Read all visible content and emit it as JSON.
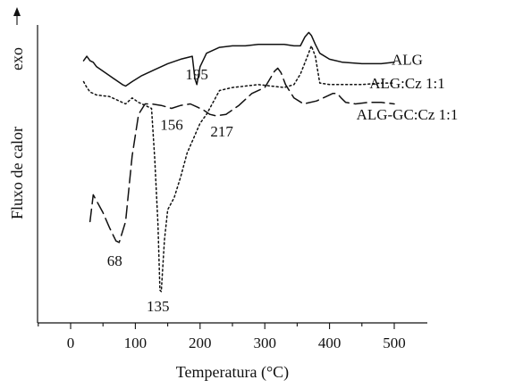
{
  "chart_data": {
    "type": "line",
    "xlabel": "Temperatura (°C)",
    "ylabel": "Fluxo de calor",
    "exo_label": "exo",
    "xlim": [
      -50,
      520
    ],
    "y_units": "relative (arbitrary, exo up)",
    "ylim": [
      0,
      1
    ],
    "x_ticks": [
      0,
      100,
      200,
      300,
      400,
      500
    ],
    "x_tick_labels": [
      "0",
      "100",
      "200",
      "300",
      "400",
      "500"
    ],
    "grid": false,
    "series": [
      {
        "name": "ALG",
        "style": "solid",
        "label_x": 520,
        "label_y": 0.885,
        "x": [
          20,
          25,
          30,
          35,
          40,
          60,
          80,
          85,
          95,
          110,
          130,
          150,
          170,
          188,
          192,
          195,
          200,
          210,
          230,
          250,
          270,
          290,
          310,
          330,
          345,
          355,
          362,
          368,
          372,
          378,
          385,
          400,
          420,
          450,
          480,
          500
        ],
        "y": [
          0.88,
          0.895,
          0.88,
          0.875,
          0.86,
          0.83,
          0.8,
          0.795,
          0.81,
          0.83,
          0.85,
          0.87,
          0.885,
          0.895,
          0.82,
          0.8,
          0.86,
          0.905,
          0.925,
          0.93,
          0.93,
          0.935,
          0.935,
          0.935,
          0.93,
          0.93,
          0.96,
          0.975,
          0.965,
          0.935,
          0.905,
          0.885,
          0.875,
          0.87,
          0.87,
          0.875
        ]
      },
      {
        "name": "ALG:Cz 1:1",
        "style": "dotted",
        "label_x": 520,
        "label_y": 0.805,
        "x": [
          20,
          25,
          30,
          40,
          60,
          75,
          85,
          95,
          105,
          115,
          125,
          130,
          135,
          138,
          140,
          145,
          150,
          160,
          170,
          180,
          190,
          200,
          210,
          220,
          230,
          250,
          270,
          290,
          310,
          330,
          345,
          355,
          365,
          372,
          378,
          385,
          400,
          420,
          450,
          480,
          500
        ],
        "y": [
          0.81,
          0.79,
          0.775,
          0.765,
          0.76,
          0.745,
          0.735,
          0.755,
          0.74,
          0.73,
          0.72,
          0.55,
          0.33,
          0.11,
          0.105,
          0.28,
          0.38,
          0.42,
          0.49,
          0.57,
          0.62,
          0.67,
          0.7,
          0.74,
          0.78,
          0.79,
          0.795,
          0.8,
          0.795,
          0.79,
          0.8,
          0.835,
          0.89,
          0.93,
          0.895,
          0.805,
          0.8,
          0.8,
          0.8,
          0.805,
          0.805
        ]
      },
      {
        "name": "ALG-GC:Cz 1:1",
        "style": "dashed",
        "label_x": 520,
        "label_y": 0.7,
        "x": [
          30,
          35,
          40,
          50,
          60,
          70,
          75,
          85,
          95,
          105,
          115,
          125,
          140,
          156,
          170,
          185,
          195,
          205,
          215,
          225,
          240,
          260,
          280,
          300,
          315,
          320,
          325,
          332,
          345,
          360,
          380,
          395,
          405,
          412,
          418,
          425,
          440,
          460,
          480,
          500
        ],
        "y": [
          0.34,
          0.43,
          0.41,
          0.37,
          0.32,
          0.275,
          0.27,
          0.34,
          0.56,
          0.7,
          0.735,
          0.735,
          0.73,
          0.72,
          0.73,
          0.735,
          0.725,
          0.715,
          0.7,
          0.695,
          0.7,
          0.73,
          0.77,
          0.79,
          0.845,
          0.855,
          0.84,
          0.8,
          0.755,
          0.735,
          0.745,
          0.76,
          0.77,
          0.77,
          0.755,
          0.74,
          0.735,
          0.74,
          0.74,
          0.735
        ]
      }
    ],
    "annotations": [
      {
        "text": "68",
        "x": 68,
        "y": 0.27
      },
      {
        "text": "135",
        "x": 135,
        "y": 0.105
      },
      {
        "text": "156",
        "x": 156,
        "y": 0.72
      },
      {
        "text": "195",
        "x": 195,
        "y": 0.8
      },
      {
        "text": "217",
        "x": 217,
        "y": 0.695
      }
    ]
  }
}
